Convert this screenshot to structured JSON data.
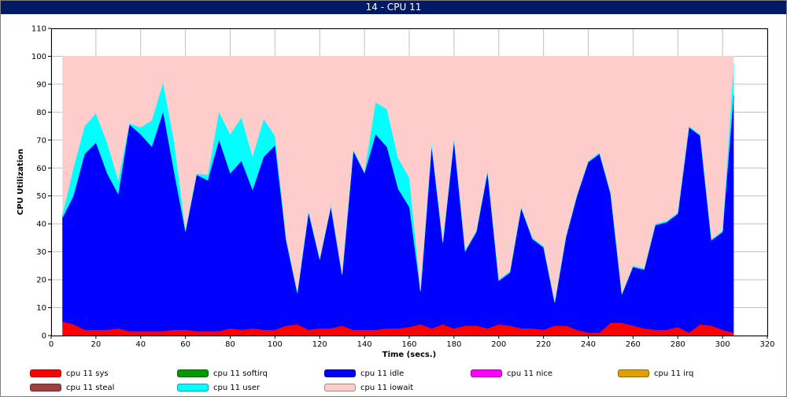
{
  "window": {
    "title": "14 - CPU 11"
  },
  "chart_data": {
    "type": "area",
    "stacked": true,
    "xlabel": "Time (secs.)",
    "ylabel": "CPU Utilization",
    "xlim": [
      0,
      320
    ],
    "ylim": [
      0,
      110
    ],
    "xticks": [
      0,
      20,
      40,
      60,
      80,
      100,
      120,
      140,
      160,
      180,
      200,
      220,
      240,
      260,
      280,
      300,
      320
    ],
    "yticks": [
      0,
      10,
      20,
      30,
      40,
      50,
      60,
      70,
      80,
      90,
      100,
      110
    ],
    "grid": true,
    "legend_position": "bottom",
    "x": [
      5,
      10,
      15,
      20,
      25,
      30,
      35,
      40,
      45,
      50,
      55,
      60,
      65,
      70,
      75,
      80,
      85,
      90,
      95,
      100,
      105,
      110,
      115,
      120,
      125,
      130,
      135,
      140,
      145,
      150,
      155,
      160,
      165,
      170,
      175,
      180,
      185,
      190,
      195,
      200,
      205,
      210,
      215,
      220,
      225,
      230,
      235,
      240,
      245,
      250,
      255,
      260,
      265,
      270,
      275,
      280,
      285,
      290,
      295,
      300,
      305
    ],
    "series": [
      {
        "name": "cpu 11 sys",
        "color": "#ff0000",
        "values": [
          5,
          4,
          2,
          2,
          2,
          2.5,
          1.5,
          1.5,
          1.5,
          1.5,
          2,
          2,
          1.5,
          1.5,
          1.5,
          2.5,
          2,
          2.5,
          2,
          2,
          3.5,
          4,
          2,
          2.5,
          2.5,
          3.5,
          2,
          2,
          2,
          2.5,
          2.5,
          3,
          4,
          2.5,
          4,
          2.5,
          3.5,
          3.5,
          2.5,
          4,
          3.5,
          2.5,
          2.5,
          2,
          3.5,
          3.5,
          2,
          1,
          1,
          4.5,
          4.5,
          3.5,
          2.5,
          2,
          2,
          3,
          1,
          4,
          3.5,
          2,
          1
        ]
      },
      {
        "name": "cpu 11 softirq",
        "color": "#009900",
        "values": [
          0,
          0,
          0,
          0,
          0,
          0,
          0,
          0,
          0,
          0,
          0,
          0,
          0,
          0,
          0,
          0,
          0,
          0,
          0,
          0,
          0,
          0,
          0,
          0,
          0,
          0,
          0,
          0,
          0,
          0,
          0,
          0,
          0,
          0,
          0,
          0,
          0,
          0,
          0,
          0,
          0,
          0,
          0,
          0,
          0,
          0,
          0,
          0,
          0,
          0,
          0,
          0,
          0,
          0,
          0,
          0,
          0,
          0,
          0,
          0,
          0
        ]
      },
      {
        "name": "cpu 11 idle",
        "color": "#0000ff",
        "values": [
          37,
          46,
          63,
          67,
          56,
          48,
          74,
          70.5,
          66,
          78.5,
          56,
          35,
          56,
          54,
          68.5,
          55.5,
          60.5,
          49.5,
          62,
          66,
          30.5,
          11,
          42,
          24.5,
          43.5,
          18,
          64,
          56,
          70,
          65,
          50,
          43,
          11.5,
          65.5,
          29,
          67.5,
          26.5,
          33.5,
          56,
          15.5,
          19,
          43,
          32,
          29.5,
          8,
          31.5,
          48,
          61,
          64,
          46,
          10,
          21,
          21,
          37.5,
          38.5,
          40.5,
          73.5,
          67.5,
          30.5,
          35,
          85
        ]
      },
      {
        "name": "cpu 11 nice",
        "color": "#ff00ff",
        "values": [
          0,
          0,
          0,
          0,
          0,
          0,
          0,
          0,
          0,
          0,
          0,
          0,
          0,
          0,
          0,
          0,
          0,
          0,
          0,
          0,
          0,
          0,
          0,
          0,
          0,
          0,
          0,
          0,
          0,
          0,
          0,
          0,
          0,
          0,
          0,
          0,
          0,
          0,
          0,
          0,
          0,
          0,
          0,
          0,
          0,
          0,
          0,
          0,
          0,
          0,
          0,
          0,
          0,
          0,
          0,
          0,
          0,
          0,
          0,
          0,
          0
        ]
      },
      {
        "name": "cpu 11 irq",
        "color": "#e0a000",
        "values": [
          0,
          0,
          0,
          0,
          0,
          0,
          0,
          0,
          0,
          0,
          0,
          0,
          0,
          0,
          0,
          0,
          0,
          0,
          0,
          0,
          0,
          0,
          0,
          0,
          0,
          0,
          0,
          0,
          0,
          0,
          0,
          0,
          0,
          0,
          0,
          0,
          0,
          0,
          0,
          0,
          0,
          0,
          0,
          0,
          0,
          0,
          0,
          0,
          0,
          0,
          0,
          0,
          0,
          0,
          0,
          0,
          0,
          0,
          0,
          0,
          0
        ]
      },
      {
        "name": "cpu 11 steal",
        "color": "#a04040",
        "values": [
          0,
          0,
          0,
          0,
          0,
          0,
          0,
          0,
          0,
          0,
          0,
          0,
          0,
          0,
          0,
          0,
          0,
          0,
          0,
          0,
          0,
          0,
          0,
          0,
          0,
          0,
          0,
          0,
          0,
          0,
          0,
          0,
          0,
          0,
          0,
          0,
          0,
          0,
          0,
          0,
          0,
          0,
          0,
          0,
          0,
          0,
          0,
          0,
          0,
          0,
          0,
          0,
          0,
          0,
          0,
          0,
          0,
          0,
          0,
          0,
          0
        ]
      },
      {
        "name": "cpu 11 user",
        "color": "#00ffff",
        "values": [
          1,
          10,
          10,
          10.5,
          11,
          5,
          0.5,
          2.5,
          9.5,
          10.5,
          11,
          0.5,
          0.5,
          2,
          10,
          14,
          15.5,
          12,
          13.5,
          3.5,
          0.5,
          0.5,
          0.5,
          0.5,
          0.5,
          0.5,
          0.5,
          0.5,
          11.5,
          13.5,
          11,
          10.5,
          0.5,
          0.5,
          0.5,
          0.5,
          0.5,
          0.5,
          0.5,
          0.5,
          0.5,
          0.5,
          0.5,
          0.5,
          0.5,
          0.5,
          0.5,
          0.5,
          0.5,
          0.5,
          0.5,
          0.5,
          0.5,
          0.5,
          0.5,
          0.5,
          0.5,
          0.5,
          0.5,
          0.5,
          11
        ]
      },
      {
        "name": "cpu 11 iowait",
        "color": "#ffcccc",
        "values": [
          57,
          40,
          25,
          20.5,
          31,
          44.5,
          24,
          25.5,
          23,
          9.5,
          31,
          62.5,
          42,
          42.5,
          20,
          28,
          22,
          36,
          22.5,
          28.5,
          65.5,
          84.5,
          55.5,
          72.5,
          53.5,
          78,
          33.5,
          41.5,
          16.5,
          19,
          36.5,
          43.5,
          84,
          31.5,
          66.5,
          29.5,
          69.5,
          62.5,
          41,
          80,
          77,
          54,
          65,
          68,
          88,
          64.5,
          49.5,
          37.5,
          34.5,
          49,
          85,
          75,
          76,
          60,
          59,
          56,
          25,
          28,
          65.5,
          62.5,
          3
        ]
      }
    ]
  }
}
